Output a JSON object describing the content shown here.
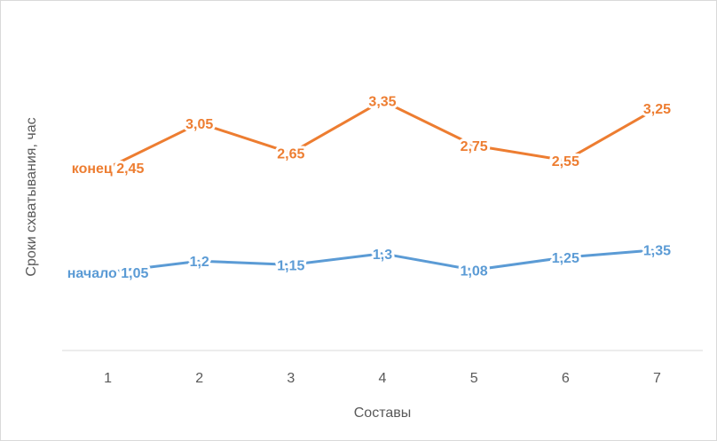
{
  "chart_data": {
    "type": "line",
    "categories": [
      "1",
      "2",
      "3",
      "4",
      "5",
      "6",
      "7"
    ],
    "series": [
      {
        "name": "конец",
        "color": "#ed7d31",
        "values": [
          2.45,
          3.05,
          2.65,
          3.35,
          2.75,
          2.55,
          3.25
        ],
        "value_labels": [
          "2,45",
          "3,05",
          "2,65",
          "3,35",
          "2,75",
          "2,55",
          "3,25"
        ]
      },
      {
        "name": "начало",
        "color": "#5b9bd5",
        "values": [
          1.05,
          1.2,
          1.15,
          1.3,
          1.08,
          1.25,
          1.35
        ],
        "value_labels": [
          "1,05",
          "1,2",
          "1,15",
          "1,3",
          "1,08",
          "1,25",
          "1,35"
        ]
      }
    ],
    "xlabel": "Составы",
    "ylabel": "Сроки схватывания, час",
    "ylim": [
      0,
      4
    ],
    "grid": false
  }
}
